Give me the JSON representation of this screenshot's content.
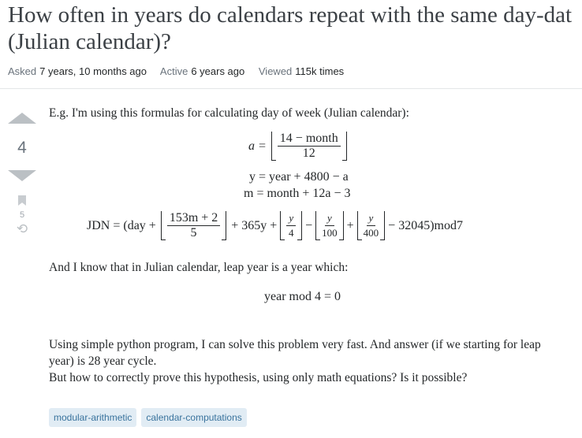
{
  "question": {
    "title_line1": "How often in years do calendars repeat with the same day-dat",
    "title_line2": "(Julian calendar)?"
  },
  "meta": {
    "asked_label": "Asked",
    "asked_value": "7 years, 10 months ago",
    "active_label": "Active",
    "active_value": "6 years ago",
    "viewed_label": "Viewed",
    "viewed_value": "115k times"
  },
  "votes": {
    "score": "4",
    "bookmarks": "5"
  },
  "body": {
    "p1": "E.g. I'm using this formulas for calculating day of week (Julian calendar):",
    "eq_a": {
      "lhs": "a =",
      "num": "14 − month",
      "den": "12"
    },
    "eq_y": "y = year + 4800 − a",
    "eq_m": "m = month + 12a − 3",
    "eq_jdn": {
      "lhs": "JDN = (day +",
      "f1n": "153m + 2",
      "f1d": "5",
      "t1": "+ 365y +",
      "f2n": "y",
      "f2d": "4",
      "t2": "−",
      "f3n": "y",
      "f3d": "100",
      "t3": "+",
      "f4n": "y",
      "f4d": "400",
      "t4": "− 32045)mod7"
    },
    "p2": "And I know that in Julian calendar, leap year is a year which:",
    "eq_leap": "year mod 4 = 0",
    "p3": "Using simple python program, I can solve this problem very fast. And answer (if we starting for leap year) is 28 year cycle.",
    "p4": "But how to correctly prove this hypothesis, using only math equations? Is it possible?"
  },
  "tags": [
    "modular-arithmetic",
    "calendar-computations"
  ]
}
